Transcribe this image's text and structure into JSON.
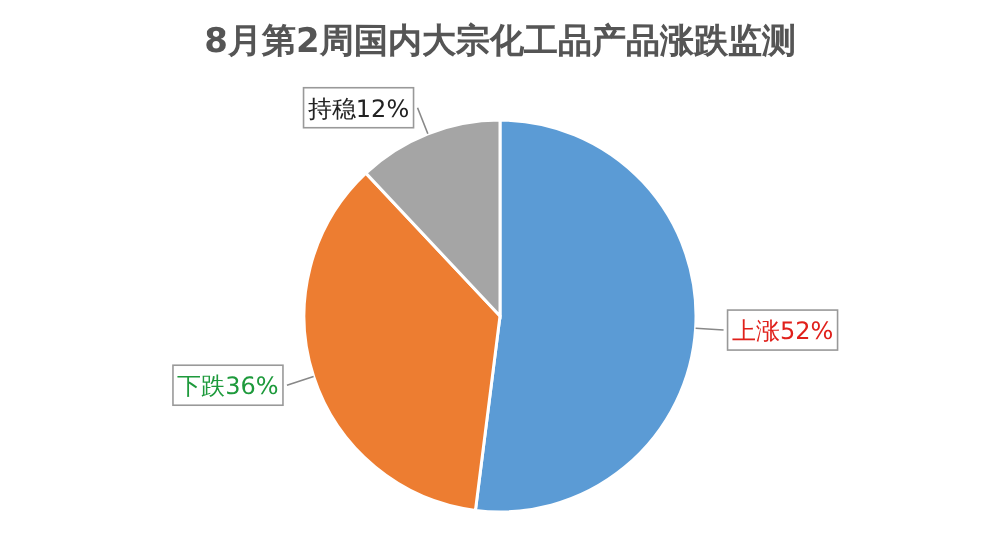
{
  "chart_data": {
    "type": "pie",
    "title": "8月第2周国内大宗化工品产品涨跌监测",
    "categories": [
      "上涨",
      "下跌",
      "持稳"
    ],
    "values": [
      52,
      36,
      12
    ],
    "value_labels": [
      "52%",
      "36%",
      "12%"
    ],
    "colors": [
      "#5b9bd5",
      "#ed7d31",
      "#a5a5a5"
    ]
  }
}
